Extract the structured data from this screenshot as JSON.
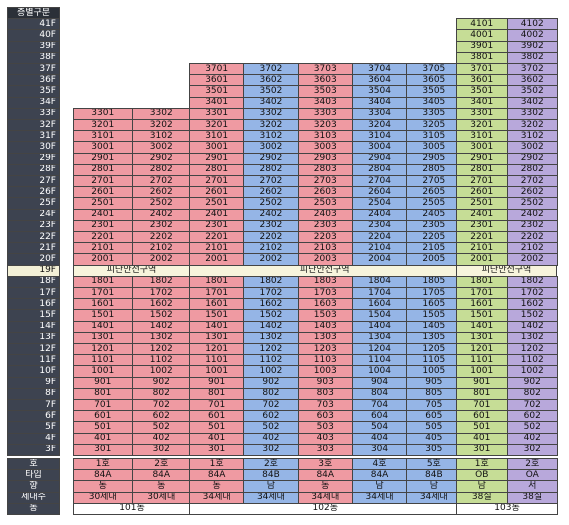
{
  "header": "층별구분",
  "refuge_label": "피난안전구역",
  "refuge_floor": "19F",
  "colors": {
    "red": "#ef9aa2",
    "blue": "#95b5e6",
    "green": "#c6dd96",
    "purple": "#b8a8db",
    "floor_dark": "#3d4350",
    "refuge": "#f7f4dc"
  },
  "floors": [
    "41F",
    "40F",
    "39F",
    "38F",
    "37F",
    "36F",
    "35F",
    "34F",
    "33F",
    "32F",
    "31F",
    "30F",
    "29F",
    "28F",
    "27F",
    "26F",
    "25F",
    "24F",
    "23F",
    "22F",
    "21F",
    "20F",
    "19F",
    "18F",
    "17F",
    "16F",
    "15F",
    "14F",
    "13F",
    "12F",
    "11F",
    "10F",
    "9F",
    "8F",
    "7F",
    "6F",
    "5F",
    "4F",
    "3F"
  ],
  "summary_labels": [
    "호",
    "타입",
    "향",
    "세대수",
    "동"
  ],
  "buildings": [
    {
      "name": "101동",
      "top_floor": 33,
      "units": [
        {
          "ho": "1호",
          "type": "84A",
          "dir": "동",
          "count": "30세대",
          "color": "red"
        },
        {
          "ho": "2호",
          "type": "84A",
          "dir": "동",
          "count": "30세대",
          "color": "red"
        }
      ]
    },
    {
      "name": "102동",
      "top_floor": 37,
      "units": [
        {
          "ho": "1호",
          "type": "84A",
          "dir": "동",
          "count": "34세대",
          "color": "red"
        },
        {
          "ho": "2호",
          "type": "84B",
          "dir": "남",
          "count": "34세대",
          "color": "blue"
        },
        {
          "ho": "3호",
          "type": "84A",
          "dir": "동",
          "count": "34세대",
          "color": "red"
        },
        {
          "ho": "4호",
          "type": "84A",
          "dir": "남",
          "count": "34세대",
          "color": "blue"
        },
        {
          "ho": "5호",
          "type": "84B",
          "dir": "남",
          "count": "34세대",
          "color": "blue"
        }
      ]
    },
    {
      "name": "103동",
      "top_floor": 41,
      "units": [
        {
          "ho": "1호",
          "type": "OB",
          "dir": "남",
          "count": "38실",
          "color": "green"
        },
        {
          "ho": "2호",
          "type": "OA",
          "dir": "서",
          "count": "38실",
          "color": "purple"
        }
      ]
    }
  ]
}
